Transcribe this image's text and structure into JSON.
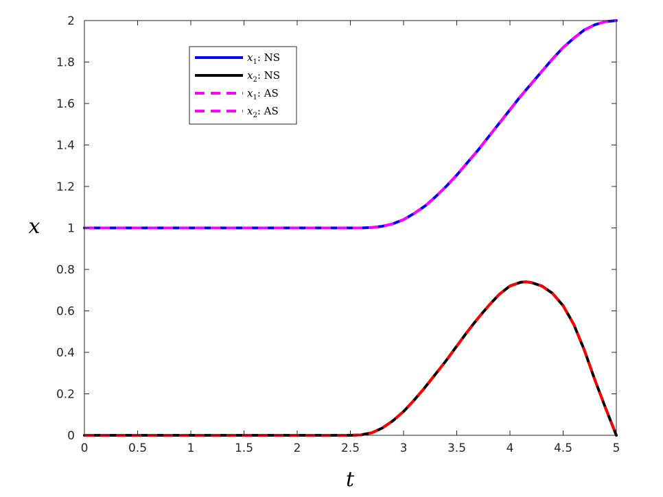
{
  "chart_data": {
    "type": "line",
    "title": "",
    "xlabel": "t",
    "ylabel": "x",
    "xlim": [
      0,
      5
    ],
    "ylim": [
      0,
      2
    ],
    "xticks": [
      0,
      0.5,
      1,
      1.5,
      2,
      2.5,
      3,
      3.5,
      4,
      4.5,
      5
    ],
    "xtick_labels": [
      "0",
      "0.5",
      "1",
      "1.5",
      "2",
      "2.5",
      "3",
      "3.5",
      "4",
      "4.5",
      "5"
    ],
    "yticks": [
      0,
      0.2,
      0.4,
      0.6,
      0.8,
      1,
      1.2,
      1.4,
      1.6,
      1.8,
      2
    ],
    "ytick_labels": [
      "0",
      "0.2",
      "0.4",
      "0.6",
      "0.8",
      "1",
      "1.2",
      "1.4",
      "1.6",
      "1.8",
      "2"
    ],
    "grid": false,
    "legend_position": "top-left",
    "x": [
      0,
      0.5,
      1,
      1.5,
      2,
      2.5,
      2.6,
      2.7,
      2.8,
      2.9,
      3,
      3.1,
      3.2,
      3.3,
      3.4,
      3.5,
      3.6,
      3.7,
      3.8,
      3.9,
      4,
      4.1,
      4.15,
      4.2,
      4.3,
      4.4,
      4.5,
      4.6,
      4.7,
      4.8,
      4.9,
      5
    ],
    "series": [
      {
        "name": "x_1: NS",
        "legend_symbol": "x",
        "legend_sub": "1",
        "legend_suffix": ": NS",
        "color": "#0000ff",
        "dash": "solid",
        "values": [
          1,
          1,
          1,
          1,
          1,
          1,
          1,
          1.002,
          1.008,
          1.02,
          1.04,
          1.07,
          1.105,
          1.15,
          1.2,
          1.255,
          1.315,
          1.375,
          1.44,
          1.505,
          1.57,
          1.635,
          1.665,
          1.695,
          1.755,
          1.815,
          1.87,
          1.915,
          1.955,
          1.98,
          1.995,
          2
        ]
      },
      {
        "name": "x_2: NS",
        "legend_symbol": "x",
        "legend_sub": "2",
        "legend_suffix": ": NS",
        "color": "#000000",
        "dash": "solid",
        "values": [
          0,
          0,
          0,
          0,
          0,
          0,
          0.002,
          0.012,
          0.035,
          0.07,
          0.115,
          0.17,
          0.23,
          0.295,
          0.36,
          0.43,
          0.5,
          0.565,
          0.625,
          0.68,
          0.72,
          0.738,
          0.74,
          0.737,
          0.72,
          0.685,
          0.625,
          0.535,
          0.41,
          0.265,
          0.13,
          0
        ]
      },
      {
        "name": "x_1: AS",
        "legend_symbol": "x",
        "legend_sub": "1",
        "legend_suffix": ": AS",
        "color": "#ff00ff",
        "dash": "dashed",
        "values": [
          1,
          1,
          1,
          1,
          1,
          1,
          1,
          1.002,
          1.008,
          1.02,
          1.04,
          1.07,
          1.105,
          1.15,
          1.2,
          1.255,
          1.315,
          1.375,
          1.44,
          1.505,
          1.57,
          1.635,
          1.665,
          1.695,
          1.755,
          1.815,
          1.87,
          1.915,
          1.955,
          1.98,
          1.995,
          2
        ]
      },
      {
        "name": "x_2: AS",
        "legend_symbol": "x",
        "legend_sub": "2",
        "legend_suffix": ": AS",
        "color": "#ff0000",
        "legend_color": "#ff00ff",
        "dash": "dashed",
        "values": [
          0,
          0,
          0,
          0,
          0,
          0,
          0.002,
          0.012,
          0.035,
          0.07,
          0.115,
          0.17,
          0.23,
          0.295,
          0.36,
          0.43,
          0.5,
          0.565,
          0.625,
          0.68,
          0.72,
          0.738,
          0.74,
          0.737,
          0.72,
          0.685,
          0.625,
          0.535,
          0.41,
          0.265,
          0.13,
          0
        ]
      }
    ]
  }
}
